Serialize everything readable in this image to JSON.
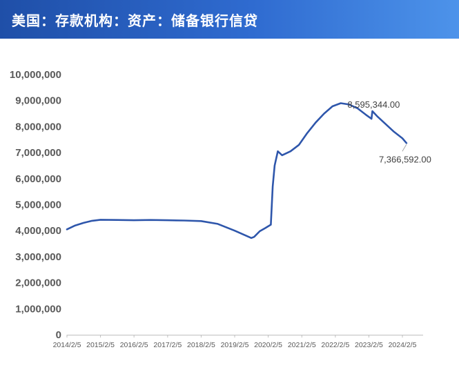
{
  "header": {
    "title": "美国：存款机构：资产：储备银行信贷"
  },
  "theme": {
    "header_start": "#1f4fa8",
    "header_end": "#4d93ea",
    "line_color": "#2e56ab",
    "text_color": "#595959"
  },
  "chart_data": {
    "type": "line",
    "title": "美国：存款机构：资产：储备银行信贷",
    "xlabel": "",
    "ylabel": "",
    "ylim": [
      0,
      10000000
    ],
    "y_ticks": [
      "10,000,000",
      "9,000,000",
      "8,000,000",
      "7,000,000",
      "6,000,000",
      "5,000,000",
      "4,000,000",
      "3,000,000",
      "2,000,000",
      "1,000,000",
      "0"
    ],
    "x_ticks": [
      "2014/2/5",
      "2015/2/5",
      "2016/2/5",
      "2017/2/5",
      "2018/2/5",
      "2019/2/5",
      "2020/2/5",
      "2021/2/5",
      "2022/2/5",
      "2023/2/5",
      "2024/2/5"
    ],
    "grid": false,
    "legend": "none",
    "series": [
      {
        "points": [
          [
            "2014/2/5",
            4050000
          ],
          [
            "2014/5/5",
            4200000
          ],
          [
            "2014/8/5",
            4300000
          ],
          [
            "2014/11/5",
            4380000
          ],
          [
            "2015/2/5",
            4420000
          ],
          [
            "2015/8/5",
            4410000
          ],
          [
            "2016/2/5",
            4400000
          ],
          [
            "2016/8/5",
            4410000
          ],
          [
            "2017/2/5",
            4400000
          ],
          [
            "2017/8/5",
            4390000
          ],
          [
            "2018/2/5",
            4370000
          ],
          [
            "2018/8/5",
            4260000
          ],
          [
            "2019/2/5",
            4000000
          ],
          [
            "2019/8/5",
            3720000
          ],
          [
            "2019/9/5",
            3760000
          ],
          [
            "2019/11/5",
            3980000
          ],
          [
            "2020/1/5",
            4100000
          ],
          [
            "2020/3/5",
            4230000
          ],
          [
            "2020/3/25",
            5700000
          ],
          [
            "2020/4/15",
            6500000
          ],
          [
            "2020/5/20",
            7050000
          ],
          [
            "2020/7/5",
            6900000
          ],
          [
            "2020/10/5",
            7050000
          ],
          [
            "2021/1/5",
            7300000
          ],
          [
            "2021/4/5",
            7750000
          ],
          [
            "2021/7/5",
            8150000
          ],
          [
            "2021/10/5",
            8500000
          ],
          [
            "2022/1/5",
            8780000
          ],
          [
            "2022/4/5",
            8900000
          ],
          [
            "2022/7/5",
            8850000
          ],
          [
            "2022/10/5",
            8700000
          ],
          [
            "2023/1/5",
            8450000
          ],
          [
            "2023/3/5",
            8300000
          ],
          [
            "2023/3/15",
            8595344
          ],
          [
            "2023/5/5",
            8400000
          ],
          [
            "2023/8/5",
            8100000
          ],
          [
            "2023/11/5",
            7800000
          ],
          [
            "2024/2/5",
            7550000
          ],
          [
            "2024/3/20",
            7366592
          ]
        ]
      }
    ],
    "annotations": [
      {
        "text": "8,595,344.00",
        "x": "2023/3/15",
        "y": 8595344
      },
      {
        "text": "7,366,592.00",
        "x": "2024/3/20",
        "y": 7366592
      }
    ]
  }
}
